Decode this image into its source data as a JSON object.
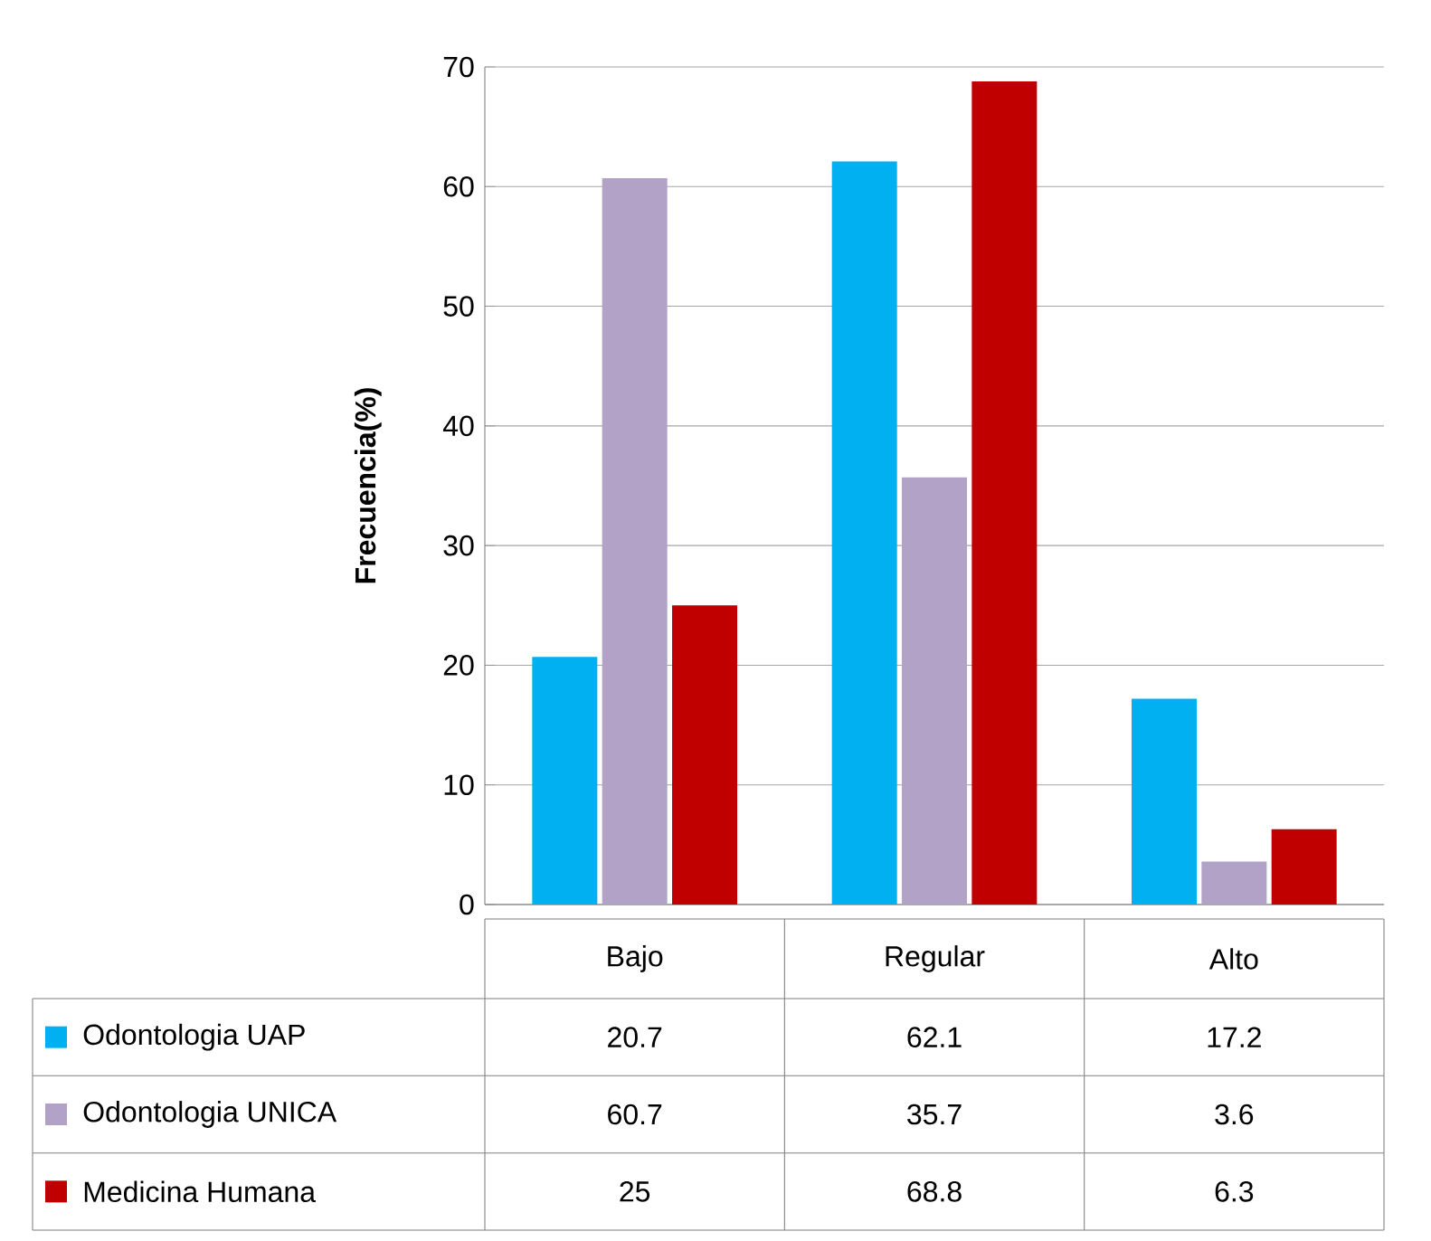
{
  "chart_data": {
    "type": "bar",
    "ylabel": "Frecuencia(%)",
    "categories": [
      "Bajo",
      "Regular",
      "Alto"
    ],
    "series": [
      {
        "name": "Odontologia UAP",
        "color": "#00b0f0",
        "values": [
          20.7,
          62.1,
          17.2
        ]
      },
      {
        "name": "Odontologia UNICA",
        "color": "#b3a2c7",
        "values": [
          60.7,
          35.7,
          3.6
        ]
      },
      {
        "name": "Medicina Humana",
        "color": "#c00000",
        "values": [
          25,
          68.8,
          6.3
        ]
      }
    ],
    "ylim": [
      0,
      70
    ],
    "yticks": [
      0,
      10,
      20,
      30,
      40,
      50,
      60,
      70
    ],
    "grid": "y",
    "legend": "bottom",
    "data_labels": true
  }
}
